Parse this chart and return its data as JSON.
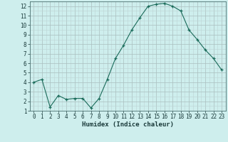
{
  "title": "",
  "xlabel": "Humidex (Indice chaleur)",
  "ylabel": "",
  "x": [
    0,
    1,
    2,
    3,
    4,
    5,
    6,
    7,
    8,
    9,
    10,
    11,
    12,
    13,
    14,
    15,
    16,
    17,
    18,
    19,
    20,
    21,
    22,
    23
  ],
  "y": [
    4.0,
    4.3,
    1.4,
    2.6,
    2.2,
    2.3,
    2.3,
    1.3,
    2.3,
    4.3,
    6.5,
    7.9,
    9.5,
    10.8,
    12.0,
    12.2,
    12.3,
    12.0,
    11.5,
    9.5,
    8.5,
    7.4,
    6.5,
    5.3
  ],
  "line_color": "#1a6b5a",
  "marker": "+",
  "marker_size": 3,
  "background_color": "#ceeeed",
  "grid_color_major": "#aabebe",
  "grid_color_minor": "#bdd4d4",
  "ylim": [
    1,
    12.5
  ],
  "xlim": [
    -0.5,
    23.5
  ],
  "yticks": [
    1,
    2,
    3,
    4,
    5,
    6,
    7,
    8,
    9,
    10,
    11,
    12
  ],
  "xticks": [
    0,
    1,
    2,
    3,
    4,
    5,
    6,
    7,
    8,
    9,
    10,
    11,
    12,
    13,
    14,
    15,
    16,
    17,
    18,
    19,
    20,
    21,
    22,
    23
  ],
  "tick_fontsize": 5.5,
  "xlabel_fontsize": 6.5,
  "lw": 0.8,
  "mew": 0.9
}
